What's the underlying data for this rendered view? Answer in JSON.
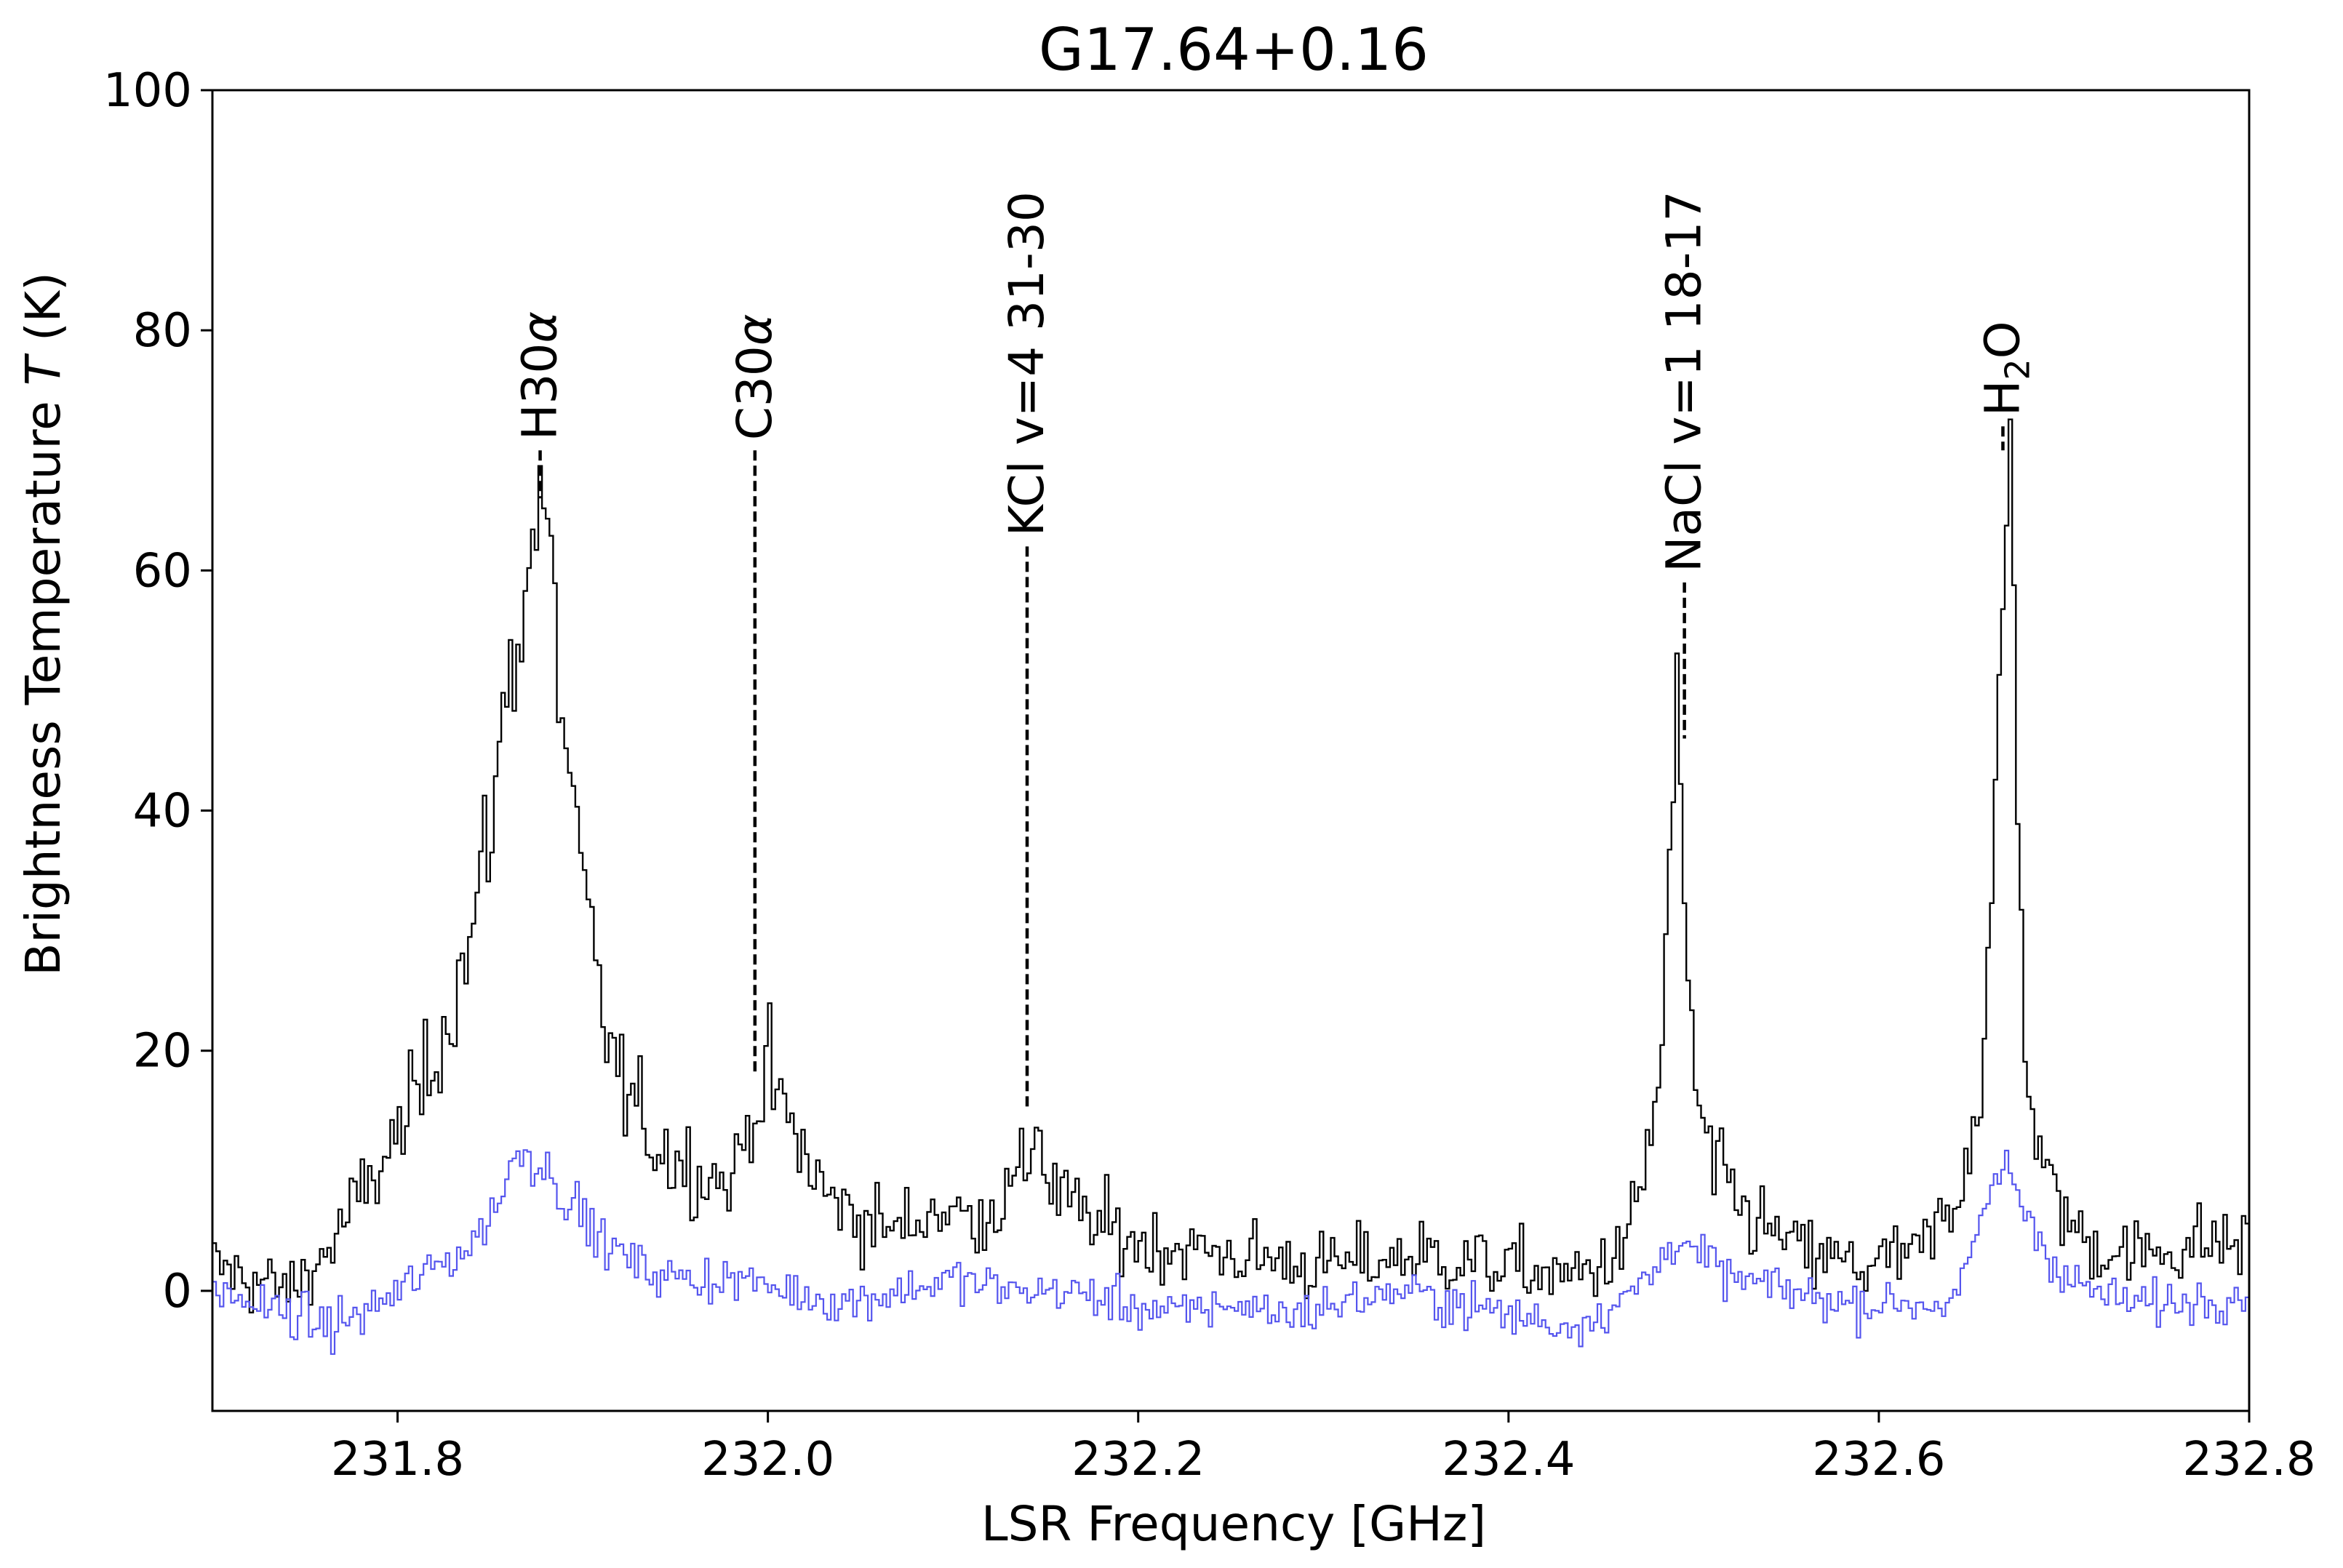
{
  "chart_data": {
    "type": "line",
    "title": "G17.64+0.16",
    "xlabel": "LSR Frequency [GHz]",
    "ylabel": "Brightness Temperature T (K)",
    "xlim": [
      231.7,
      232.8
    ],
    "ylim": [
      -10,
      100
    ],
    "x_ticks": [
      231.8,
      232.0,
      232.2,
      232.4,
      232.6,
      232.8
    ],
    "x_tick_labels": [
      "231.8",
      "232.0",
      "232.2",
      "232.4",
      "232.6",
      "232.8"
    ],
    "y_ticks": [
      0,
      20,
      40,
      60,
      80,
      100
    ],
    "y_tick_labels": [
      "0",
      "20",
      "40",
      "60",
      "80",
      "100"
    ],
    "grid": false,
    "legend": "none",
    "series": [
      {
        "color": "#000000",
        "step": true,
        "x": [
          231.7,
          231.72,
          231.74,
          231.76,
          231.78,
          231.8,
          231.82,
          231.84,
          231.85,
          231.86,
          231.87,
          231.875,
          231.88,
          231.89,
          231.9,
          231.91,
          231.92,
          231.94,
          231.96,
          231.98,
          231.99,
          232.0,
          232.01,
          232.03,
          232.05,
          232.07,
          232.09,
          232.11,
          232.13,
          232.14,
          232.145,
          232.15,
          232.17,
          232.2,
          232.25,
          232.3,
          232.35,
          232.4,
          232.43,
          232.46,
          232.47,
          232.48,
          232.485,
          232.49,
          232.495,
          232.5,
          232.51,
          232.53,
          232.56,
          232.59,
          232.62,
          232.64,
          232.655,
          232.665,
          232.67,
          232.675,
          232.68,
          232.69,
          232.71,
          232.74,
          232.77,
          232.8
        ],
        "y": [
          2,
          1,
          0,
          3,
          8,
          13,
          20,
          30,
          40,
          52,
          60,
          67,
          62,
          45,
          32,
          23,
          17,
          12,
          10,
          9,
          15,
          18,
          14,
          8,
          6,
          5,
          7,
          6,
          8,
          11,
          15,
          9,
          6,
          4,
          3,
          2,
          3,
          2,
          1,
          3,
          8,
          17,
          30,
          48,
          30,
          16,
          10,
          6,
          3,
          2,
          3,
          7,
          18,
          50,
          71,
          35,
          16,
          9,
          4,
          3,
          4,
          4
        ]
      },
      {
        "color": "#5555ee",
        "step": true,
        "x": [
          231.7,
          231.72,
          231.74,
          231.76,
          231.78,
          231.8,
          231.82,
          231.84,
          231.855,
          231.865,
          231.875,
          231.89,
          231.91,
          231.93,
          231.95,
          231.98,
          232.01,
          232.04,
          232.07,
          232.1,
          232.13,
          232.16,
          232.19,
          232.22,
          232.25,
          232.28,
          232.31,
          232.34,
          232.37,
          232.4,
          232.43,
          232.46,
          232.48,
          232.49,
          232.5,
          232.52,
          232.55,
          232.58,
          232.61,
          232.64,
          232.65,
          232.66,
          232.67,
          232.68,
          232.7,
          232.73,
          232.76,
          232.8
        ],
        "y": [
          0,
          -1,
          -2,
          -3,
          -2,
          0,
          2,
          4,
          8,
          12,
          11,
          8,
          4,
          2,
          1,
          1,
          0,
          -1,
          0,
          1,
          0,
          0,
          -1,
          -2,
          -1,
          -2,
          -1,
          0,
          -1,
          -2,
          -3,
          -1,
          2,
          5,
          3,
          1,
          0,
          -1,
          -1,
          -1,
          3,
          9,
          10,
          6,
          1,
          -1,
          -1,
          0
        ]
      }
    ],
    "annotations": [
      {
        "label": "H30α",
        "x": 231.877,
        "y_top": 70,
        "y_bottom": 66
      },
      {
        "label": "C30α",
        "x": 231.993,
        "y_top": 70,
        "y_bottom": 18
      },
      {
        "label": "KCl v=4 31-30",
        "x": 232.14,
        "y_top": 62,
        "y_bottom": 15
      },
      {
        "label": "NaCl v=1 18-17",
        "x": 232.495,
        "y_top": 59,
        "y_bottom": 46
      },
      {
        "label": "H2O",
        "x": 232.667,
        "y_top": 72,
        "y_bottom": 70
      }
    ]
  }
}
